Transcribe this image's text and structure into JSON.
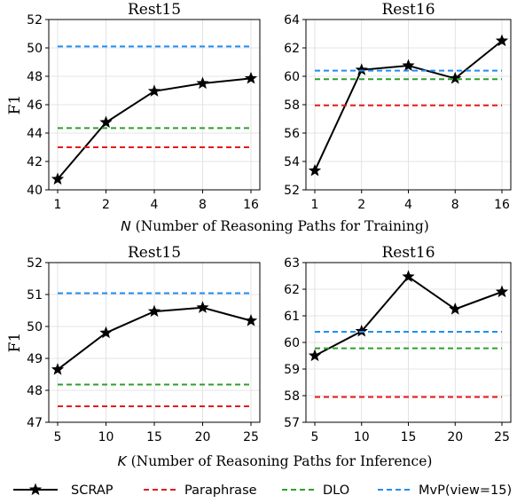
{
  "x_axis_labels": [
    {
      "var": "N",
      "text": " (Number of Reasoning Paths for Training)"
    },
    {
      "var": "K",
      "text": " (Number of Reasoning Paths for Inference)"
    }
  ],
  "legend": [
    {
      "label": "SCRAP",
      "color": "#000000",
      "style": "solid-star"
    },
    {
      "label": "Paraphrase",
      "color": "#e41a1c",
      "style": "dashed"
    },
    {
      "label": "DLO",
      "color": "#2ca02c",
      "style": "dashed"
    },
    {
      "label": "MvP(view=15)",
      "color": "#1f8ef1",
      "style": "dashed"
    }
  ],
  "chart_data": [
    {
      "type": "line",
      "title": "Rest15",
      "ylabel": "F1",
      "x_ticks": [
        "1",
        "2",
        "4",
        "8",
        "16"
      ],
      "ylim": [
        40,
        52
      ],
      "y_ticks": [
        40,
        42,
        44,
        46,
        48,
        50,
        52
      ],
      "grid": true,
      "series": [
        {
          "name": "SCRAP",
          "values": [
            40.75,
            44.75,
            46.95,
            47.5,
            47.85
          ]
        },
        {
          "name": "Paraphrase",
          "values": [
            43.0,
            43.0,
            43.0,
            43.0,
            43.0
          ]
        },
        {
          "name": "DLO",
          "values": [
            44.35,
            44.35,
            44.35,
            44.35,
            44.35
          ]
        },
        {
          "name": "MvP(view=15)",
          "values": [
            50.1,
            50.1,
            50.1,
            50.1,
            50.1
          ]
        }
      ]
    },
    {
      "type": "line",
      "title": "Rest16",
      "ylabel": "",
      "x_ticks": [
        "1",
        "2",
        "4",
        "8",
        "16"
      ],
      "ylim": [
        52,
        64
      ],
      "y_ticks": [
        52,
        54,
        56,
        58,
        60,
        62,
        64
      ],
      "grid": true,
      "series": [
        {
          "name": "SCRAP",
          "values": [
            53.35,
            60.45,
            60.75,
            59.85,
            62.5
          ]
        },
        {
          "name": "Paraphrase",
          "values": [
            57.95,
            57.95,
            57.95,
            57.95,
            57.95
          ]
        },
        {
          "name": "DLO",
          "values": [
            59.8,
            59.8,
            59.8,
            59.8,
            59.8
          ]
        },
        {
          "name": "MvP(view=15)",
          "values": [
            60.4,
            60.4,
            60.4,
            60.4,
            60.4
          ]
        }
      ]
    },
    {
      "type": "line",
      "title": "Rest15",
      "ylabel": "F1",
      "x_ticks": [
        "5",
        "10",
        "15",
        "20",
        "25"
      ],
      "ylim": [
        47,
        52
      ],
      "y_ticks": [
        47,
        48,
        49,
        50,
        51,
        52
      ],
      "grid": true,
      "series": [
        {
          "name": "SCRAP",
          "values": [
            48.65,
            49.8,
            50.47,
            50.59,
            50.18
          ]
        },
        {
          "name": "Paraphrase",
          "values": [
            47.5,
            47.5,
            47.5,
            47.5,
            47.5
          ]
        },
        {
          "name": "DLO",
          "values": [
            48.18,
            48.18,
            48.18,
            48.18,
            48.18
          ]
        },
        {
          "name": "MvP(view=15)",
          "values": [
            51.04,
            51.04,
            51.04,
            51.04,
            51.04
          ]
        }
      ]
    },
    {
      "type": "line",
      "title": "Rest16",
      "ylabel": "",
      "x_ticks": [
        "5",
        "10",
        "15",
        "20",
        "25"
      ],
      "ylim": [
        57,
        63
      ],
      "y_ticks": [
        57,
        58,
        59,
        60,
        61,
        62,
        63
      ],
      "grid": true,
      "series": [
        {
          "name": "SCRAP",
          "values": [
            59.5,
            60.42,
            62.47,
            61.25,
            61.9
          ]
        },
        {
          "name": "Paraphrase",
          "values": [
            57.95,
            57.95,
            57.95,
            57.95,
            57.95
          ]
        },
        {
          "name": "DLO",
          "values": [
            59.78,
            59.78,
            59.78,
            59.78,
            59.78
          ]
        },
        {
          "name": "MvP(view=15)",
          "values": [
            60.4,
            60.4,
            60.4,
            60.4,
            60.4
          ]
        }
      ]
    }
  ]
}
